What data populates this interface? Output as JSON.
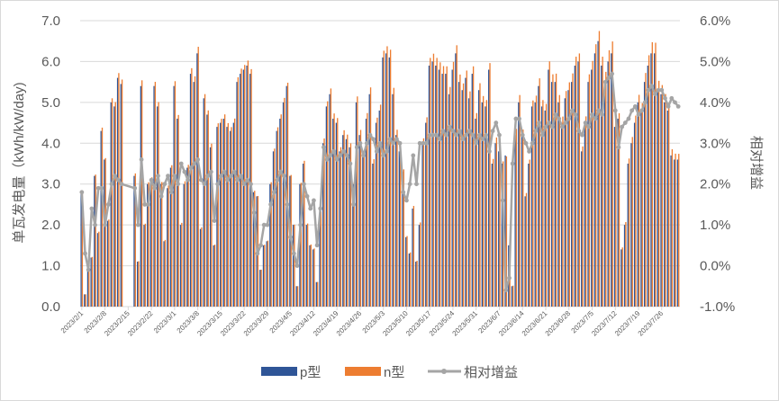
{
  "chart_data": {
    "type": "bar",
    "combo": "bar+line (secondary axis)",
    "ylabel": "单瓦发电量（kWh/kW/day)",
    "y2label": "相对增益",
    "ylim": [
      0,
      7
    ],
    "y2lim": [
      -1,
      6
    ],
    "yticks": [
      "0.0",
      "1.0",
      "2.0",
      "3.0",
      "4.0",
      "5.0",
      "6.0",
      "7.0"
    ],
    "y2ticks": [
      "-1.0%",
      "0.0%",
      "1.0%",
      "2.0%",
      "3.0%",
      "4.0%",
      "5.0%",
      "6.0%"
    ],
    "grid": true,
    "legend_position": "bottom",
    "start_date": "2023/2/1",
    "xtick_labels": [
      "2023/2/1",
      "2023/2/8",
      "2023/2/15",
      "2023/2/22",
      "2023/3/1",
      "2023/3/8",
      "2023/3/15",
      "2023/3/22",
      "2023/3/29",
      "2023/4/5",
      "2023/4/12",
      "2023/4/19",
      "2023/4/26",
      "2023/5/3",
      "2023/5/10",
      "2023/5/17",
      "2023/5/24",
      "2023/5/31",
      "2023/6/7",
      "2023/6/14",
      "2023/6/21",
      "2023/6/28",
      "2023/7/5",
      "2023/7/12",
      "2023/7/19",
      "2023/7/26"
    ],
    "series": [
      {
        "name": "p型",
        "type": "bar",
        "color": "#2f5597",
        "values": [
          2.75,
          0.3,
          0.9,
          1.2,
          3.2,
          1.8,
          4.3,
          3.6,
          2.1,
          5.0,
          4.9,
          5.6,
          5.45,
          0,
          0,
          0,
          3.2,
          1.1,
          5.4,
          2.0,
          3.0,
          3.1,
          5.4,
          4.9,
          3.0,
          1.6,
          2.9,
          3.4,
          5.4,
          4.6,
          2.0,
          3.0,
          3.4,
          5.7,
          5.5,
          6.2,
          1.9,
          5.1,
          4.7,
          3.9,
          1.5,
          4.4,
          4.5,
          4.6,
          4.4,
          4.3,
          4.5,
          5.5,
          5.7,
          5.8,
          5.9,
          5.7,
          2.8,
          2.7,
          0.9,
          1.5,
          1.6,
          3.0,
          3.8,
          4.3,
          4.6,
          5.0,
          5.4,
          3.2,
          2.0,
          0.5,
          3.0,
          3.5,
          2.0,
          1.5,
          1.4,
          0.6,
          2.3,
          4.0,
          4.9,
          5.2,
          4.6,
          4.5,
          3.8,
          4.2,
          4.1,
          3.9,
          3.0,
          5.0,
          4.2,
          3.7,
          4.6,
          5.2,
          3.5,
          4.5,
          4.8,
          6.1,
          6.2,
          6.1,
          5.2,
          4.2,
          3.8,
          3.3,
          1.7,
          1.3,
          2.4,
          1.1,
          2.0,
          4.0,
          4.5,
          5.9,
          6.0,
          5.9,
          5.8,
          5.7,
          5.7,
          5.2,
          5.8,
          6.2,
          5.5,
          5.3,
          5.6,
          5.1,
          5.7,
          4.6,
          5.3,
          5.0,
          4.9,
          5.8,
          3.5,
          4.0,
          3.8,
          3.5,
          3.7,
          1.5,
          0.5,
          4.2,
          5.0,
          4.2,
          2.7,
          3.5,
          4.9,
          5.0,
          5.4,
          4.9,
          4.8,
          5.8,
          5.5,
          5.5,
          5.0,
          4.5,
          5.1,
          5.3,
          5.5,
          5.9,
          6.0,
          3.8,
          4.5,
          5.5,
          5.8,
          6.2,
          6.5,
          5.9,
          5.5,
          6.0,
          6.2,
          4.4,
          4.6,
          1.4,
          2.0,
          3.5,
          4.0,
          4.5,
          5.0,
          4.8,
          5.5,
          5.9,
          6.2,
          6.2,
          5.3,
          5.2,
          5.0,
          4.8,
          3.7,
          3.6,
          3.6
        ]
      },
      {
        "name": "n型",
        "type": "bar",
        "color": "#ed7d31",
        "derived_from": "p型 × (1 + 相对增益)"
      },
      {
        "name": "相对增益",
        "type": "line",
        "axis": "secondary",
        "unit": "%",
        "color": "#a5a5a5",
        "values": [
          1.8,
          0.3,
          -0.1,
          1.4,
          1.0,
          1.9,
          1.9,
          1.0,
          1.5,
          2.0,
          2.2,
          2.1,
          2.0,
          null,
          null,
          null,
          1.9,
          1.0,
          2.6,
          1.5,
          1.5,
          2.1,
          1.9,
          2.2,
          1.7,
          2.0,
          2.2,
          1.8,
          2.2,
          2.0,
          2.5,
          2.3,
          2.1,
          2.4,
          2.5,
          2.6,
          2.1,
          2.0,
          2.2,
          2.3,
          1.1,
          2.0,
          2.2,
          2.3,
          2.1,
          2.2,
          2.3,
          2.1,
          2.2,
          2.0,
          2.1,
          2.0,
          1.3,
          0.3,
          0.5,
          1.0,
          1.0,
          1.5,
          1.8,
          2.1,
          2.3,
          2.2,
          1.5,
          0.7,
          0.3,
          0.0,
          1.0,
          2.0,
          1.7,
          1.4,
          1.6,
          0.5,
          1.4,
          2.9,
          2.6,
          2.7,
          2.8,
          2.6,
          2.7,
          2.8,
          2.7,
          2.5,
          1.5,
          2.9,
          3.0,
          2.7,
          3.0,
          3.2,
          3.1,
          2.8,
          3.0,
          2.7,
          2.8,
          3.1,
          3.0,
          3.1,
          3.0,
          1.8,
          1.6,
          2.0,
          2.7,
          2.0,
          3.0,
          3.0,
          3.0,
          3.2,
          3.2,
          3.2,
          3.1,
          3.3,
          3.2,
          3.4,
          3.3,
          3.2,
          3.3,
          3.1,
          3.2,
          3.3,
          3.2,
          3.0,
          3.2,
          3.1,
          3.2,
          2.8,
          3.3,
          3.5,
          3.2,
          1.6,
          -0.6,
          -0.3,
          2.5,
          3.6,
          3.6,
          3.2,
          3.0,
          2.8,
          3.0,
          3.3,
          3.5,
          3.2,
          3.4,
          3.5,
          3.4,
          3.7,
          3.6,
          3.4,
          3.5,
          3.6,
          3.8,
          3.7,
          3.3,
          3.2,
          3.5,
          3.4,
          3.7,
          3.6,
          3.8,
          3.7,
          4.5,
          4.6,
          4.7,
          3.8,
          2.9,
          3.4,
          3.5,
          3.6,
          3.8,
          3.9,
          3.7,
          3.8,
          4.0,
          4.3,
          4.4,
          4.2,
          4.3,
          4.3,
          4.1,
          3.9,
          4.1,
          4.0,
          3.9
        ]
      }
    ]
  }
}
